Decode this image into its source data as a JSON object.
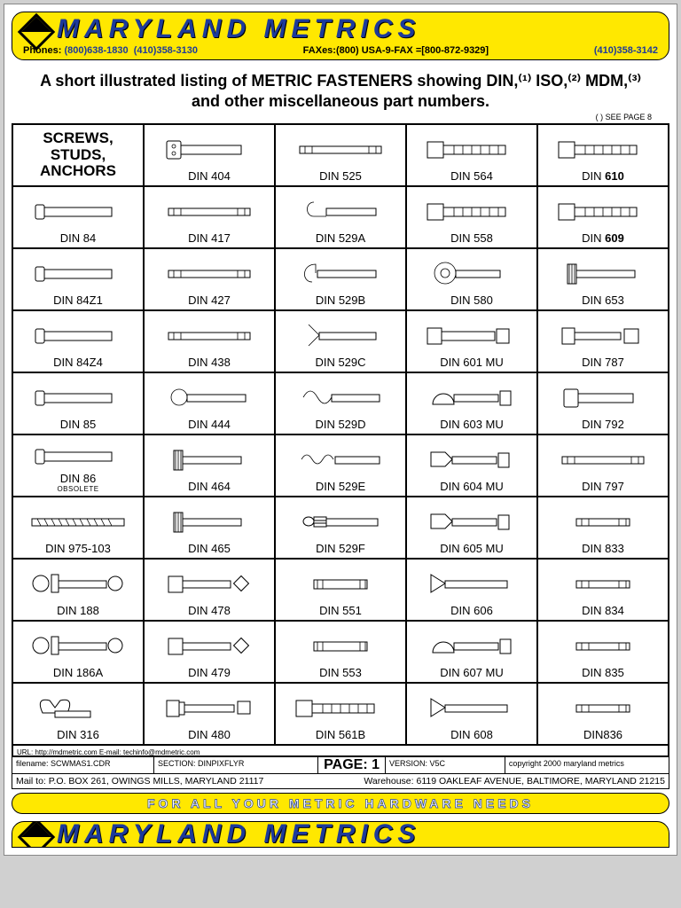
{
  "header": {
    "company": "MARYLAND METRICS",
    "phones_label": "Phones:",
    "phone1": "(800)638-1830",
    "phone2": "(410)358-3130",
    "fax_label": "FAXes:(800) USA-9-FAX",
    "fax_alt": "=[800-872-9329]",
    "fax2": "(410)358-3142"
  },
  "intro": {
    "line": "A short illustrated listing of METRIC FASTENERS showing DIN,⁽¹⁾ ISO,⁽²⁾ MDM,⁽³⁾ and other miscellaneous part numbers.",
    "see_page": "( ) SEE PAGE 8"
  },
  "section_heading": "SCREWS, STUDS, ANCHORS",
  "cells": [
    {
      "label": "DIN 404",
      "shape": "caphex"
    },
    {
      "label": "DIN 525",
      "shape": "stud"
    },
    {
      "label": "DIN 564",
      "shape": "hexbolt"
    },
    {
      "label": "DIN 610",
      "shape": "hexbolt",
      "bold": true
    },
    {
      "label": "DIN 84",
      "shape": "cheese"
    },
    {
      "label": "DIN 417",
      "shape": "stud"
    },
    {
      "label": "DIN 529A",
      "shape": "hook"
    },
    {
      "label": "DIN 558",
      "shape": "hexbolt"
    },
    {
      "label": "DIN 609",
      "shape": "hexbolt",
      "bold": true
    },
    {
      "label": "DIN 84Z1",
      "shape": "cheese"
    },
    {
      "label": "DIN 427",
      "shape": "stud"
    },
    {
      "label": "DIN 529B",
      "shape": "jhook"
    },
    {
      "label": "DIN 580",
      "shape": "eye"
    },
    {
      "label": "DIN 653",
      "shape": "thumb"
    },
    {
      "label": "DIN 84Z4",
      "shape": "cheese"
    },
    {
      "label": "DIN 438",
      "shape": "stud"
    },
    {
      "label": "DIN 529C",
      "shape": "yfork"
    },
    {
      "label": "DIN 601 MU",
      "shape": "hexnut"
    },
    {
      "label": "DIN 787",
      "shape": "tslot"
    },
    {
      "label": "DIN 85",
      "shape": "pan"
    },
    {
      "label": "DIN 444",
      "shape": "eyebolt"
    },
    {
      "label": "DIN 529D",
      "shape": "wave"
    },
    {
      "label": "DIN 603 MU",
      "shape": "carriage"
    },
    {
      "label": "DIN 792",
      "shape": "socket"
    },
    {
      "label": "DIN 86",
      "sub": "OBSOLETE",
      "shape": "round"
    },
    {
      "label": "DIN 464",
      "shape": "knurl"
    },
    {
      "label": "DIN 529E",
      "shape": "twist"
    },
    {
      "label": "DIN 604 MU",
      "shape": "flatnut"
    },
    {
      "label": "DIN 797",
      "shape": "stud"
    },
    {
      "label": "DIN 975-103",
      "shape": "rod"
    },
    {
      "label": "DIN 465",
      "shape": "knurl"
    },
    {
      "label": "DIN 529F",
      "shape": "split"
    },
    {
      "label": "DIN 605 MU",
      "shape": "flatnut"
    },
    {
      "label": "DIN 833",
      "shape": "shortstud"
    },
    {
      "label": "DIN 188",
      "shape": "tbolt2"
    },
    {
      "label": "DIN 478",
      "shape": "sqhead"
    },
    {
      "label": "DIN 551",
      "shape": "setscrew"
    },
    {
      "label": "DIN 606",
      "shape": "csk"
    },
    {
      "label": "DIN 834",
      "shape": "shortstud"
    },
    {
      "label": "DIN 186A",
      "shape": "tbolt2"
    },
    {
      "label": "DIN 479",
      "shape": "sqhead"
    },
    {
      "label": "DIN 553",
      "shape": "setscrew"
    },
    {
      "label": "DIN 607 MU",
      "shape": "carriage"
    },
    {
      "label": "DIN 835",
      "shape": "shortstud"
    },
    {
      "label": "DIN 316",
      "shape": "wing"
    },
    {
      "label": "DIN 480",
      "shape": "sqcollar"
    },
    {
      "label": "DIN 561B",
      "shape": "hexbolt"
    },
    {
      "label": "DIN 608",
      "shape": "csk"
    },
    {
      "label": "DIN836",
      "shape": "shortstud"
    }
  ],
  "url_line": "URL: http://mdmetric.com  E-mail: techinfo@mdmetric.com",
  "meta": {
    "filename": "filename: SCWMAS1.CDR",
    "section": "SECTION:  DINPIXFLYR",
    "page_label": "PAGE:",
    "page_num": "1",
    "version": "VERSION:  V5C",
    "copyright": "copyright 2000  maryland metrics"
  },
  "addr": {
    "mail": "Mail to: P.O. BOX 261,  OWINGS MILLS, MARYLAND 21117",
    "warehouse": "Warehouse: 6119 OAKLEAF AVENUE,  BALTIMORE, MARYLAND 21215"
  },
  "footer_tag": "FOR  ALL  YOUR  METRIC  HARDWARE  NEEDS"
}
